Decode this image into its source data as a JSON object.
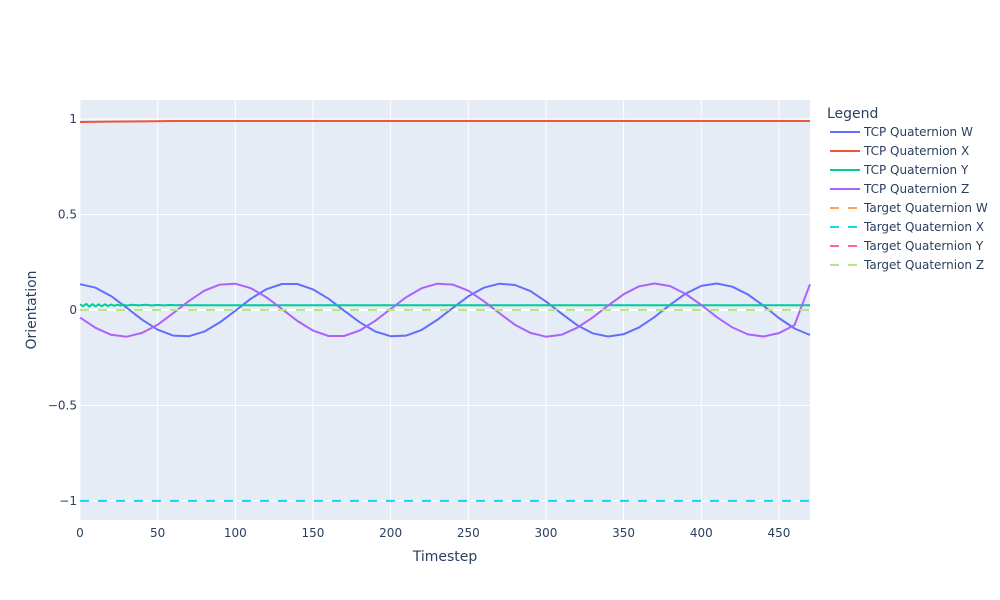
{
  "chart_data": {
    "type": "line",
    "title": "",
    "xlabel": "Timestep",
    "ylabel": "Orientation",
    "xlim": [
      0,
      470
    ],
    "ylim": [
      -1.1,
      1.1
    ],
    "x_ticks": [
      0,
      50,
      100,
      150,
      200,
      250,
      300,
      350,
      400,
      450
    ],
    "y_ticks": [
      -1,
      -0.5,
      0,
      0.5,
      1
    ],
    "y_tick_labels": [
      "−1",
      "−0.5",
      "0",
      "0.5",
      "1"
    ],
    "grid": true,
    "legend": {
      "title": "Legend",
      "position": "right"
    },
    "series": [
      {
        "name": "TCP Quaternion W",
        "color": "#636efa",
        "dash": "solid",
        "x": [
          0,
          10,
          20,
          30,
          40,
          50,
          60,
          70,
          80,
          90,
          100,
          110,
          120,
          130,
          140,
          150,
          160,
          170,
          180,
          190,
          200,
          210,
          220,
          230,
          240,
          250,
          260,
          270,
          280,
          290,
          300,
          310,
          320,
          330,
          340,
          350,
          360,
          370,
          380,
          390,
          400,
          410,
          420,
          430,
          440,
          450,
          460,
          470
        ],
        "values": [
          0.135,
          0.117,
          0.073,
          0.012,
          -0.051,
          -0.103,
          -0.134,
          -0.138,
          -0.113,
          -0.065,
          -0.004,
          0.059,
          0.109,
          0.136,
          0.136,
          0.108,
          0.059,
          -0.003,
          -0.064,
          -0.112,
          -0.137,
          -0.134,
          -0.104,
          -0.052,
          0.011,
          0.072,
          0.117,
          0.138,
          0.131,
          0.099,
          0.044,
          -0.019,
          -0.079,
          -0.122,
          -0.139,
          -0.127,
          -0.091,
          -0.036,
          0.028,
          0.086,
          0.126,
          0.139,
          0.122,
          0.081,
          0.023,
          -0.042,
          -0.097,
          -0.131
        ]
      },
      {
        "name": "TCP Quaternion X",
        "color": "#ef553b",
        "dash": "solid",
        "x": [
          0,
          20,
          40,
          60,
          100,
          200,
          300,
          400,
          470
        ],
        "values": [
          0.985,
          0.987,
          0.988,
          0.99,
          0.99,
          0.99,
          0.99,
          0.99,
          0.99
        ]
      },
      {
        "name": "TCP Quaternion Y",
        "color": "#00cc96",
        "dash": "solid",
        "x": [
          0,
          2,
          4,
          6,
          8,
          10,
          12,
          14,
          16,
          18,
          20,
          22,
          24,
          26,
          28,
          30,
          34,
          38,
          42,
          46,
          50,
          54,
          58,
          62,
          66,
          70,
          80,
          100,
          150,
          200,
          250,
          300,
          350,
          400,
          450,
          470
        ],
        "values": [
          0.03,
          0.02,
          0.032,
          0.018,
          0.031,
          0.019,
          0.03,
          0.02,
          0.03,
          0.021,
          0.029,
          0.022,
          0.028,
          0.023,
          0.028,
          0.023,
          0.027,
          0.024,
          0.027,
          0.024,
          0.026,
          0.024,
          0.026,
          0.025,
          0.026,
          0.025,
          0.025,
          0.025,
          0.025,
          0.025,
          0.025,
          0.025,
          0.025,
          0.025,
          0.025,
          0.025
        ]
      },
      {
        "name": "TCP Quaternion Z",
        "color": "#ab63fa",
        "dash": "solid",
        "x": [
          0,
          10,
          20,
          30,
          40,
          50,
          60,
          70,
          80,
          90,
          100,
          110,
          120,
          130,
          140,
          150,
          160,
          170,
          180,
          190,
          200,
          210,
          220,
          230,
          240,
          250,
          260,
          270,
          280,
          290,
          300,
          310,
          320,
          330,
          340,
          350,
          360,
          370,
          380,
          390,
          400,
          410,
          420,
          430,
          440,
          450,
          460,
          470
        ],
        "values": [
          -0.04,
          -0.093,
          -0.13,
          -0.14,
          -0.12,
          -0.077,
          -0.017,
          0.046,
          0.101,
          0.133,
          0.138,
          0.114,
          0.067,
          0.005,
          -0.057,
          -0.108,
          -0.136,
          -0.136,
          -0.108,
          -0.057,
          0.005,
          0.067,
          0.114,
          0.138,
          0.133,
          0.101,
          0.046,
          -0.017,
          -0.077,
          -0.12,
          -0.14,
          -0.13,
          -0.093,
          -0.04,
          0.023,
          0.082,
          0.124,
          0.139,
          0.125,
          0.084,
          0.026,
          -0.037,
          -0.091,
          -0.128,
          -0.139,
          -0.121,
          -0.079,
          0.135
        ]
      },
      {
        "name": "Target Quaternion W",
        "color": "#ffa15a",
        "dash": "dash",
        "x": [
          0,
          470
        ],
        "values": [
          0,
          0
        ]
      },
      {
        "name": "Target Quaternion X",
        "color": "#19d3f3",
        "dash": "dash",
        "x": [
          0,
          470
        ],
        "values": [
          -1,
          -1
        ]
      },
      {
        "name": "Target Quaternion Y",
        "color": "#ff6692",
        "dash": "dash",
        "x": [
          0,
          470
        ],
        "values": [
          0,
          0
        ]
      },
      {
        "name": "Target Quaternion Z",
        "color": "#b6e880",
        "dash": "dash",
        "x": [
          0,
          470
        ],
        "values": [
          0,
          0
        ]
      }
    ]
  }
}
